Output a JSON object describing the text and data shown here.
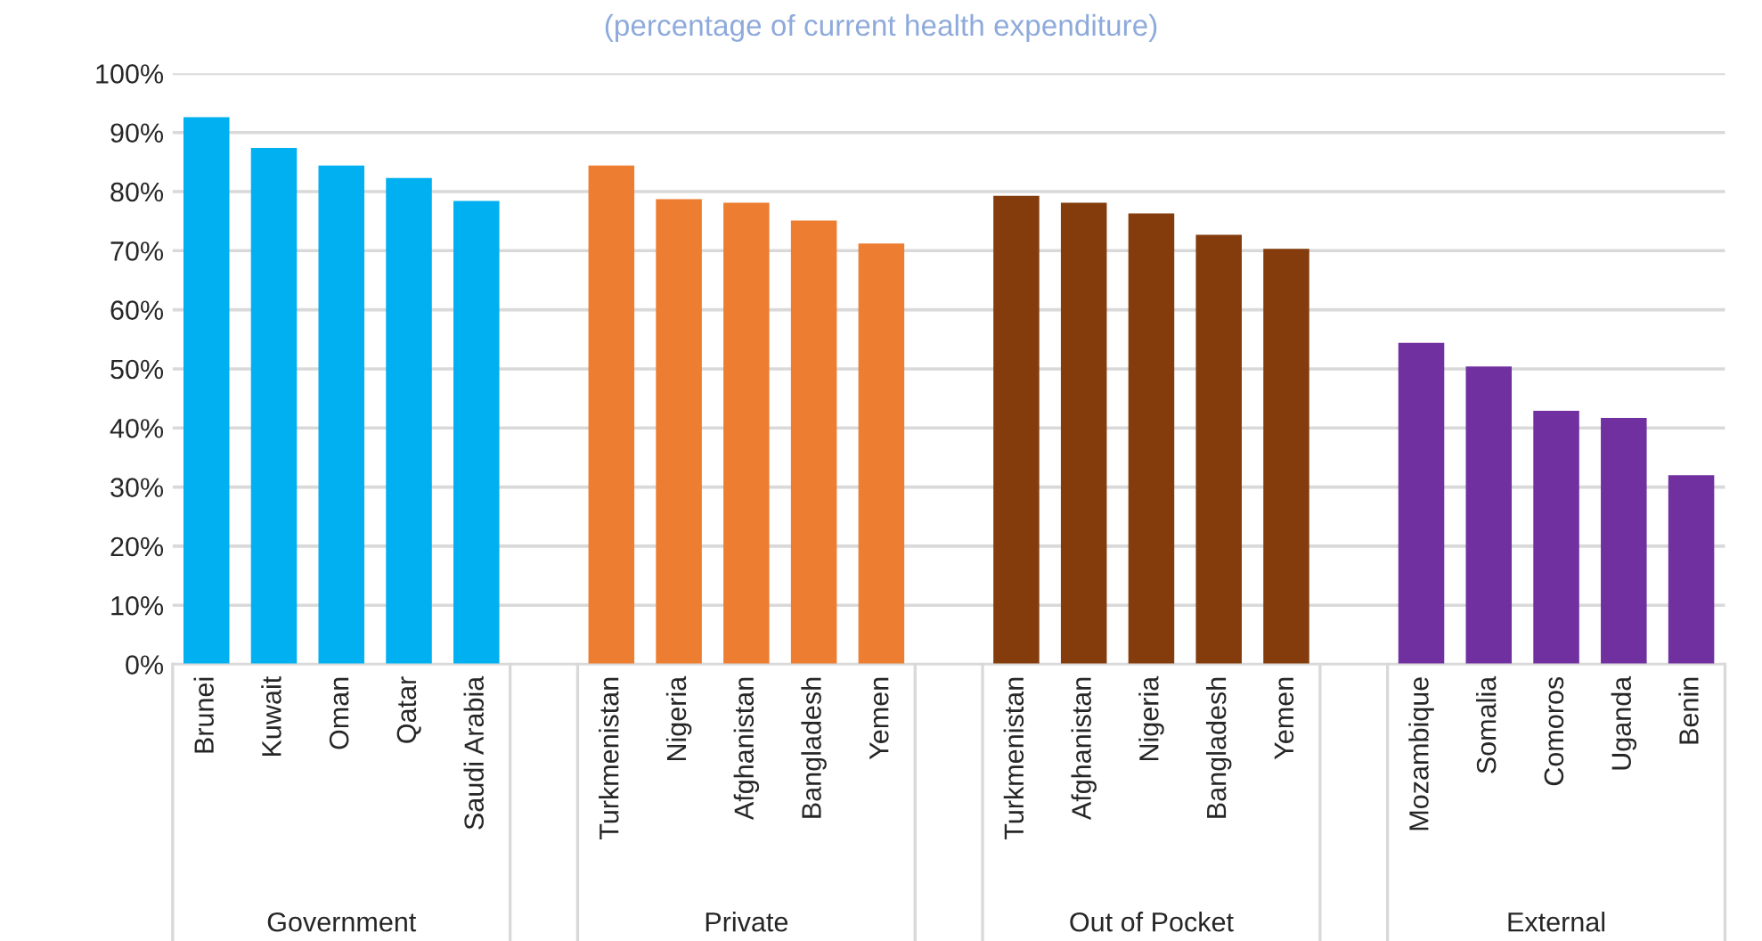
{
  "chart_data": {
    "type": "bar",
    "subtitle": "(percentage of current health expenditure)",
    "categories": [
      "Brunei",
      "Kuwait",
      "Oman",
      "Qatar",
      "Saudi Arabia",
      null,
      "Turkmenistan",
      "Nigeria",
      "Afghanistan",
      "Bangladesh",
      "Yemen",
      null,
      "Turkmenistan",
      "Afghanistan",
      "Nigeria",
      "Bangladesh",
      "Yemen",
      null,
      "Mozambique",
      "Somalia",
      "Comoros",
      "Uganda",
      "Benin"
    ],
    "series": [
      {
        "color": "#00b0f0",
        "values": [
          92.6,
          87.4,
          84.4,
          82.3,
          78.4,
          null,
          null,
          null,
          null,
          null,
          null,
          null,
          null,
          null,
          null,
          null,
          null,
          null,
          null,
          null,
          null,
          null,
          null
        ]
      },
      {
        "color": "#ed7d31",
        "values": [
          null,
          null,
          null,
          null,
          null,
          null,
          84.4,
          78.7,
          78.1,
          75.1,
          71.2,
          null,
          null,
          null,
          null,
          null,
          null,
          null,
          null,
          null,
          null,
          null,
          null
        ]
      },
      {
        "color": "#843c0c",
        "values": [
          null,
          null,
          null,
          null,
          null,
          null,
          null,
          null,
          null,
          null,
          null,
          null,
          79.3,
          78.1,
          76.3,
          72.7,
          70.3,
          null,
          null,
          null,
          null,
          null,
          null
        ]
      },
      {
        "color": "#7030a0",
        "values": [
          null,
          null,
          null,
          null,
          null,
          null,
          null,
          null,
          null,
          null,
          null,
          null,
          null,
          null,
          null,
          null,
          null,
          null,
          54.4,
          50.4,
          42.9,
          41.7,
          32.0
        ]
      }
    ],
    "ylim": [
      0,
      100
    ],
    "yticks": [
      {
        "value": 0,
        "label": "0%"
      },
      {
        "value": 10,
        "label": "10%"
      },
      {
        "value": 20,
        "label": "20%"
      },
      {
        "value": 30,
        "label": "30%"
      },
      {
        "value": 40,
        "label": "40%"
      },
      {
        "value": 50,
        "label": "50%"
      },
      {
        "value": 60,
        "label": "60%"
      },
      {
        "value": 70,
        "label": "70%"
      },
      {
        "value": 80,
        "label": "80%"
      },
      {
        "value": 90,
        "label": "90%"
      },
      {
        "value": 100,
        "label": "100%"
      }
    ],
    "annotations": [
      "Government",
      "Private",
      "Out of Pocket",
      "External"
    ],
    "grid": "y"
  }
}
